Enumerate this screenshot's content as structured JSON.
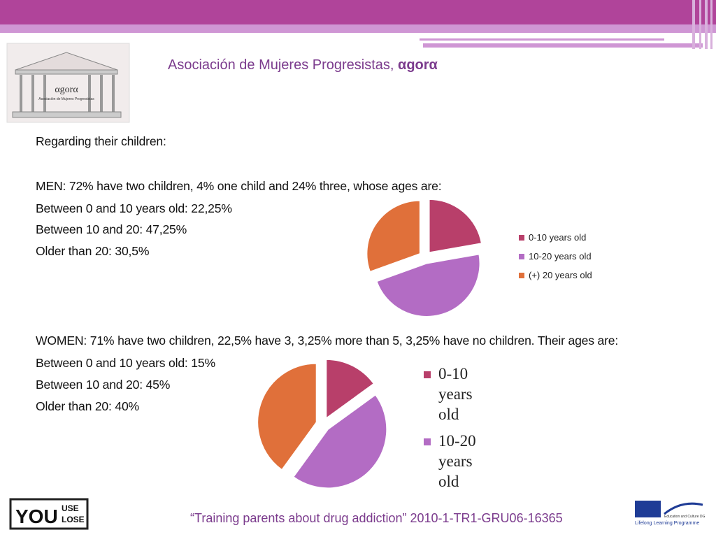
{
  "header": {
    "title": "Asociación de Mujeres Progresistas, ",
    "title_emphasis": "αgorα"
  },
  "logo": {
    "name": "αgorα",
    "subtitle": "Asociación de Mujeres Progresistas"
  },
  "body": {
    "intro": "Regarding their children:",
    "men": [
      "MEN: 72% have two children, 4% one child and 24% three, whose ages are:",
      "Between 0 and 10 years old: 22,25%",
      "Between 10 and 20: 47,25%",
      "Older than 20: 30,5%"
    ],
    "women": [
      "WOMEN: 71% have two children, 22,5% have 3, 3,25% more than 5, 3,25% have no children. Their ages are:",
      "Between 0 and 10 years old: 15%",
      "Between 10 and 20: 45%",
      "Older than 20: 40%"
    ]
  },
  "chart_data": [
    {
      "type": "pie",
      "categories": [
        "0-10 years old",
        "10-20 years old",
        "(+) 20 years old"
      ],
      "values": [
        22.25,
        47.25,
        30.5
      ],
      "colors": [
        "#b83f6a",
        "#b36cc4",
        "#e0703a"
      ]
    },
    {
      "type": "pie",
      "categories": [
        "0-10 years old",
        "10-20 years old",
        null
      ],
      "values": [
        15,
        45,
        40
      ],
      "colors": [
        "#b83f6a",
        "#b36cc4",
        "#e0703a"
      ]
    }
  ],
  "footer": {
    "text": "“Training parents about drug addiction” 2010-1-TR1-GRU06-16365",
    "you": "YOU",
    "use": "USE",
    "lose": "LOSE",
    "eu_dg": "Education and Culture DG",
    "eu_programme": "Lifelong Learning Programme"
  }
}
